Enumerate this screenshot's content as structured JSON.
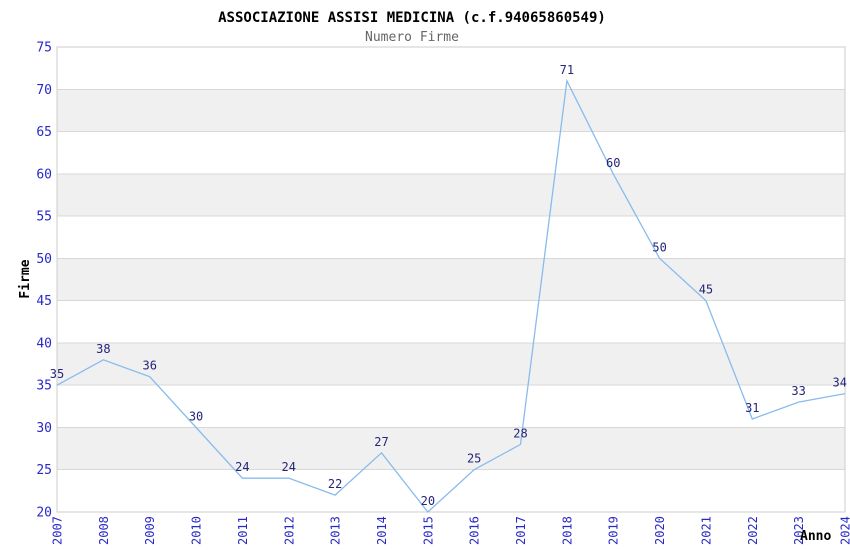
{
  "chart_data": {
    "type": "line",
    "title": "ASSOCIAZIONE ASSISI MEDICINA (c.f.94065860549)",
    "subtitle": "Numero Firme",
    "xlabel": "Anno",
    "ylabel": "Firme",
    "categories": [
      2007,
      2008,
      2009,
      2010,
      2011,
      2012,
      2013,
      2014,
      2015,
      2016,
      2017,
      2018,
      2019,
      2020,
      2021,
      2022,
      2023,
      2024
    ],
    "values": [
      35,
      38,
      36,
      30,
      24,
      24,
      22,
      27,
      20,
      25,
      28,
      71,
      60,
      50,
      45,
      31,
      33,
      34
    ],
    "ylim": [
      20,
      75
    ],
    "ytick_step": 5,
    "yticks": [
      20,
      25,
      30,
      35,
      40,
      45,
      50,
      55,
      60,
      65,
      70,
      75
    ],
    "grid": "horizontal-bands-alternating",
    "legend": "none",
    "data_labels": "shown-above-points",
    "colors": {
      "line": "#88bbee",
      "tick_label": "#2929c8",
      "data_label": "#252579",
      "band_gray": "#f0f0f0",
      "band_white": "#ffffff",
      "gridline": "#d8d8d8",
      "plot_border": "#cccccc",
      "title": "#000000",
      "subtitle": "#666666",
      "axis_label": "#000000",
      "background": "#ffffff"
    }
  }
}
